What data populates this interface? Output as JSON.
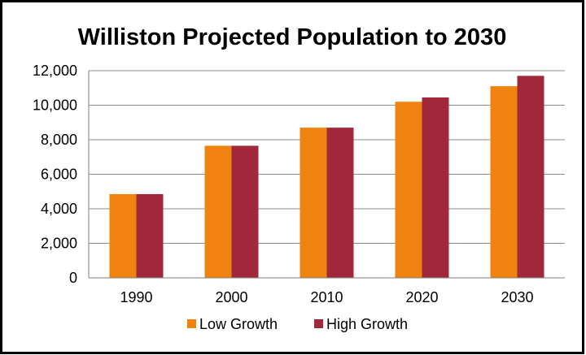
{
  "chart_data": {
    "type": "bar",
    "title": "Williston Projected Population to 2030",
    "xlabel": "",
    "ylabel": "",
    "categories": [
      "1990",
      "2000",
      "2010",
      "2020",
      "2030"
    ],
    "series": [
      {
        "name": "Low Growth",
        "color": "#F0820F",
        "values": [
          4850,
          7650,
          8700,
          10200,
          11100
        ]
      },
      {
        "name": "High Growth",
        "color": "#A0283A",
        "values": [
          4850,
          7650,
          8700,
          10450,
          11700
        ]
      }
    ],
    "ylim": [
      0,
      12000
    ],
    "yticks": [
      "0",
      "2,000",
      "4,000",
      "6,000",
      "8,000",
      "10,000",
      "12,000"
    ],
    "grid": true,
    "legend": "bottom"
  }
}
